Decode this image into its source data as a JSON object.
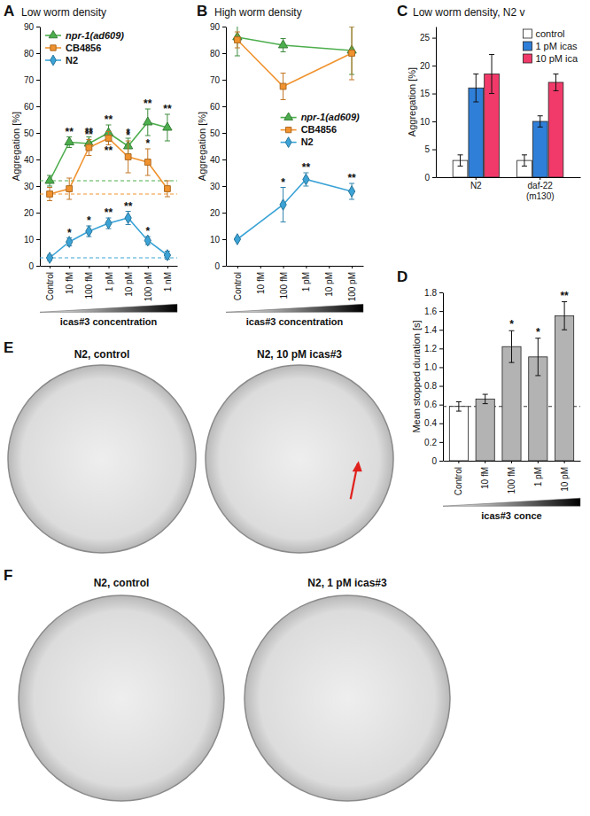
{
  "chart_data": [
    {
      "panel": "A",
      "type": "line",
      "title": "Low worm density",
      "categories": [
        "Control",
        "10 fM",
        "100 fM",
        "1 pM",
        "10 pM",
        "100 pM",
        "1 nM"
      ],
      "x_label": "icas#3 concentration",
      "y_label": "Aggregation [%]",
      "ylim": [
        0,
        90
      ],
      "yticks": [
        0,
        10,
        20,
        30,
        40,
        50,
        60,
        70,
        80,
        90
      ],
      "legend": "upper left",
      "series": [
        {
          "name": "npr-1(ad609)",
          "color": "#4cae4c",
          "marker": "triangle",
          "values": [
            32,
            46.5,
            46,
            50,
            45,
            54,
            52
          ],
          "errors": [
            2,
            2,
            2.5,
            3,
            3,
            5,
            5
          ],
          "significance": [
            null,
            "**",
            "**",
            "**",
            "*",
            "**",
            "**"
          ]
        },
        {
          "name": "CB4856",
          "color": "#f0922e",
          "marker": "square",
          "values": [
            27,
            29,
            44.5,
            48,
            41,
            39,
            29
          ],
          "errors": [
            2.5,
            4,
            3,
            2.5,
            6,
            5,
            3
          ],
          "significance": [
            null,
            null,
            "**",
            "**",
            "*",
            "*",
            null
          ]
        },
        {
          "name": "N2",
          "color": "#3ba3d6",
          "marker": "diamond",
          "values": [
            3,
            9,
            13,
            16,
            18,
            9.5,
            4
          ],
          "errors": [
            1,
            1.5,
            2,
            2,
            2.5,
            1.5,
            1.5
          ],
          "significance": [
            null,
            "*",
            "*",
            "**",
            "**",
            "*",
            null
          ]
        }
      ]
    },
    {
      "panel": "B",
      "type": "line",
      "title": "High worm density",
      "categories": [
        "Control",
        "10 fM",
        "100 fM",
        "1 pM",
        "10 pM",
        "100 pM"
      ],
      "x_label": "icas#3 concentration",
      "y_label": "Aggregation [%]",
      "ylim": [
        0,
        90
      ],
      "yticks": [
        0,
        10,
        20,
        30,
        40,
        50,
        60,
        70,
        80,
        90
      ],
      "legend": "right",
      "series": [
        {
          "name": "npr-1(ad609)",
          "color": "#4cae4c",
          "marker": "triangle",
          "x": [
            "Control",
            "100 fM",
            "100 pM"
          ],
          "values": [
            86,
            83,
            81
          ],
          "errors": [
            7,
            2.5,
            9
          ]
        },
        {
          "name": "CB4856",
          "color": "#f0922e",
          "marker": "square",
          "x": [
            "Control",
            "100 fM",
            "100 pM"
          ],
          "values": [
            85,
            67.5,
            80
          ],
          "errors": [
            3,
            5,
            10
          ]
        },
        {
          "name": "N2",
          "color": "#3ba3d6",
          "marker": "diamond",
          "x": [
            "Control",
            "100 fM",
            "1 pM",
            "100 pM"
          ],
          "values": [
            10,
            23,
            32.5,
            28
          ],
          "errors": [
            0.5,
            6.5,
            2.5,
            3
          ],
          "significance": [
            null,
            "*",
            "**",
            "**"
          ]
        }
      ]
    },
    {
      "panel": "C",
      "type": "bar",
      "title": "Low worm density, N2 v",
      "categories": [
        "N2",
        "daf-22 (m130)"
      ],
      "y_label": "Aggregation [%]",
      "ylim": [
        0,
        27
      ],
      "yticks": [
        0,
        5,
        10,
        15,
        20,
        25
      ],
      "legend": "upper right",
      "series": [
        {
          "name": "control",
          "color": "#ffffff",
          "values": [
            3,
            3
          ],
          "errors": [
            1,
            1
          ]
        },
        {
          "name": "1 pM icas",
          "color": "#2f7fd8",
          "values": [
            16,
            10
          ],
          "errors": [
            2.5,
            1
          ]
        },
        {
          "name": "10 pM ica",
          "color": "#f23a6a",
          "values": [
            18.5,
            17
          ],
          "errors": [
            3.5,
            1.5
          ]
        }
      ]
    },
    {
      "panel": "D",
      "type": "bar",
      "categories": [
        "Control",
        "10 fM",
        "100 fM",
        "1 pM",
        "10 pM"
      ],
      "x_label": "icas#3 conce",
      "y_label": "Mean stopped duration [s]",
      "ylim": [
        0,
        1.8
      ],
      "yticks": [
        0,
        0.2,
        0.4,
        0.6,
        0.8,
        {
          "value": 1,
          "label": "1.0"
        },
        1.2,
        1.4,
        1.6,
        1.8
      ],
      "values": [
        0.58,
        0.66,
        1.22,
        1.11,
        1.55
      ],
      "errors": [
        0.05,
        0.05,
        0.17,
        0.2,
        0.15
      ],
      "significance": [
        null,
        null,
        "*",
        "*",
        "**"
      ],
      "colors": [
        "#ffffff",
        "#b3b3b3",
        "#b3b3b3",
        "#b3b3b3",
        "#b3b3b3"
      ]
    }
  ],
  "images": [
    {
      "panel": "E",
      "plates": [
        {
          "title": "N2, control"
        },
        {
          "title": "N2, 10 pM icas#3"
        }
      ]
    },
    {
      "panel": "F",
      "plates": [
        {
          "title": "N2, control"
        },
        {
          "title": "N2, 1 pM icas#3"
        }
      ]
    }
  ]
}
